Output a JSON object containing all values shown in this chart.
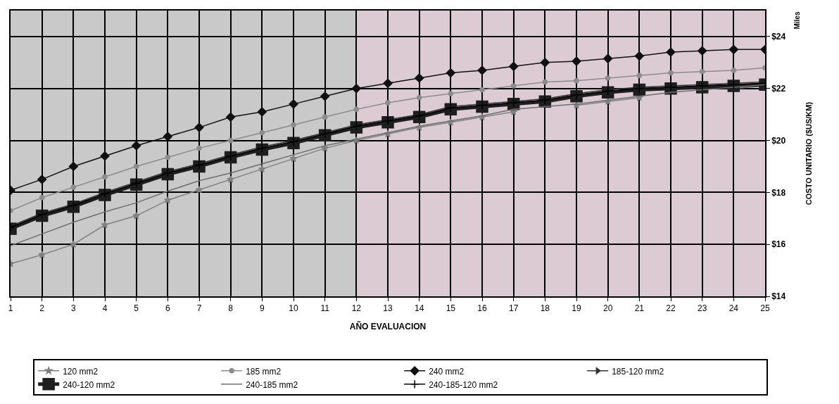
{
  "chart_data": {
    "type": "line",
    "x": [
      1,
      2,
      3,
      4,
      5,
      6,
      7,
      8,
      9,
      10,
      11,
      12,
      13,
      14,
      15,
      16,
      17,
      18,
      19,
      20,
      21,
      22,
      23,
      24,
      25
    ],
    "xlim": [
      1,
      25
    ],
    "xticks": [
      1,
      2,
      3,
      4,
      5,
      6,
      7,
      8,
      9,
      10,
      11,
      12,
      13,
      14,
      15,
      16,
      17,
      18,
      19,
      20,
      21,
      22,
      23,
      24,
      25
    ],
    "ylim": [
      14,
      25
    ],
    "yticks": [
      {
        "value": 14,
        "label": "$14"
      },
      {
        "value": 16,
        "label": "$16"
      },
      {
        "value": 18,
        "label": "$18"
      },
      {
        "value": 20,
        "label": "$20"
      },
      {
        "value": 22,
        "label": "$22"
      },
      {
        "value": 24,
        "label": "$24"
      }
    ],
    "xlabel": "AÑO EVALUACION",
    "ylabel": "COSTO UNITARIO ($US/KM)",
    "annotations": [
      "Miles"
    ],
    "grid": true,
    "legend": "bottom",
    "bands": [
      {
        "axis": "x",
        "from": 1,
        "to": 12,
        "color": "#c9c9c9"
      },
      {
        "axis": "x",
        "from": 12,
        "to": 25,
        "color": "#dccbd2"
      }
    ],
    "series": [
      {
        "name": "120 mm2",
        "color": "#808080",
        "marker": "star",
        "values": [
          15.25,
          15.6,
          16.0,
          16.75,
          17.1,
          17.7,
          18.1,
          18.5,
          18.9,
          19.3,
          19.7,
          20.0,
          20.25,
          20.5,
          20.7,
          20.9,
          21.1,
          null,
          21.35,
          21.5,
          21.65,
          null,
          null,
          22.0,
          22.1
        ]
      },
      {
        "name": "185 mm2",
        "color": "#8c8c8c",
        "marker": "circle",
        "values": [
          17.3,
          17.8,
          18.2,
          18.6,
          19.0,
          19.35,
          19.7,
          20.0,
          20.3,
          20.6,
          20.9,
          21.2,
          21.45,
          21.65,
          21.8,
          21.95,
          22.1,
          22.25,
          22.3,
          22.4,
          22.5,
          22.6,
          22.65,
          22.7,
          22.8
        ]
      },
      {
        "name": "240 mm2",
        "color": "#111111",
        "marker": "diamond",
        "values": [
          18.08,
          18.5,
          19.0,
          19.4,
          19.8,
          20.15,
          20.5,
          20.9,
          21.1,
          21.4,
          21.7,
          22.0,
          22.2,
          22.4,
          22.6,
          22.7,
          22.85,
          23.0,
          23.05,
          23.15,
          23.25,
          23.4,
          23.45,
          23.5,
          23.5
        ]
      },
      {
        "name": "185-120 mm2",
        "color": "#333333",
        "marker": "triangle",
        "values": [
          16.7,
          17.2,
          17.55,
          18.0,
          18.4,
          18.8,
          19.1,
          19.45,
          19.75,
          20.0,
          20.3,
          20.6,
          20.8,
          21.0,
          21.3,
          21.4,
          21.5,
          21.6,
          21.8,
          21.95,
          22.05,
          22.1,
          22.15,
          22.2,
          22.25
        ]
      },
      {
        "name": "240-120 mm2",
        "color": "#1e1e1e",
        "marker": "square",
        "values": [
          16.6,
          17.1,
          17.45,
          17.9,
          18.3,
          18.7,
          19.0,
          19.35,
          19.65,
          19.9,
          20.2,
          20.5,
          20.7,
          20.9,
          21.2,
          21.3,
          21.4,
          21.5,
          21.7,
          21.85,
          21.95,
          22.0,
          22.05,
          22.1,
          22.15
        ]
      },
      {
        "name": "240-185 mm2",
        "color": "#6e6e6e",
        "marker": "none",
        "values": [
          15.95,
          16.4,
          16.85,
          17.25,
          17.6,
          18.05,
          18.45,
          18.75,
          19.1,
          19.45,
          19.8,
          20.05,
          20.3,
          20.55,
          20.75,
          20.95,
          21.2,
          21.3,
          21.4,
          21.55,
          21.7,
          21.85,
          21.95,
          22.05,
          22.15
        ]
      },
      {
        "name": "240-185-120 mm2",
        "color": "#000000",
        "marker": "cross",
        "values": [
          16.65,
          17.15,
          17.5,
          17.95,
          18.35,
          18.75,
          19.05,
          19.4,
          19.7,
          19.95,
          20.25,
          20.55,
          20.75,
          20.95,
          21.25,
          21.35,
          21.45,
          21.55,
          21.75,
          21.9,
          22.0,
          22.05,
          22.1,
          22.15,
          22.2
        ]
      }
    ]
  }
}
